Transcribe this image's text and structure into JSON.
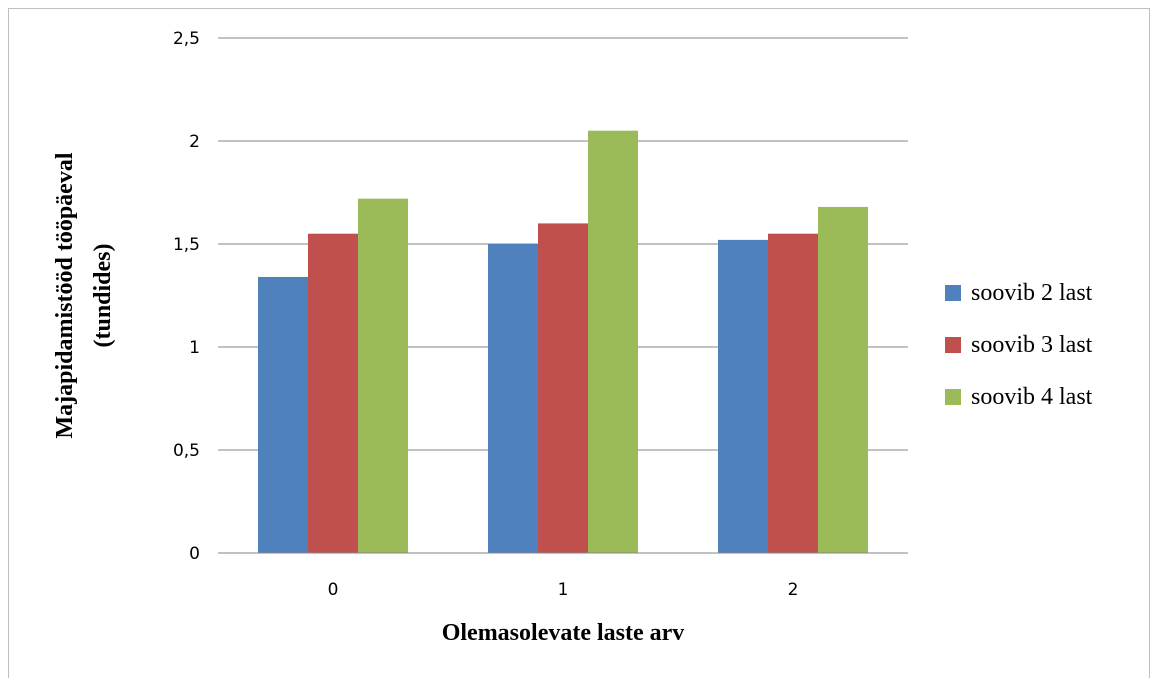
{
  "chart_data": {
    "type": "bar",
    "categories": [
      "0",
      "1",
      "2"
    ],
    "series": [
      {
        "name": "soovib 2 last",
        "values": [
          1.34,
          1.5,
          1.52
        ],
        "color": "#4F81BD"
      },
      {
        "name": "soovib 3 last",
        "values": [
          1.55,
          1.6,
          1.55
        ],
        "color": "#C0504D"
      },
      {
        "name": "soovib 4 last",
        "values": [
          1.72,
          2.05,
          1.68
        ],
        "color": "#9BBB59"
      }
    ],
    "ylim": [
      0,
      2.5
    ],
    "yticks": [
      "0",
      "0,5",
      "1",
      "1,5",
      "2",
      "2,5"
    ],
    "xlabel": "Olemasolevate laste arv",
    "ylabel_lines": [
      "Majapidamistööd tööpäeval",
      "(tundides)"
    ],
    "grid": true,
    "legend_position": "right"
  }
}
